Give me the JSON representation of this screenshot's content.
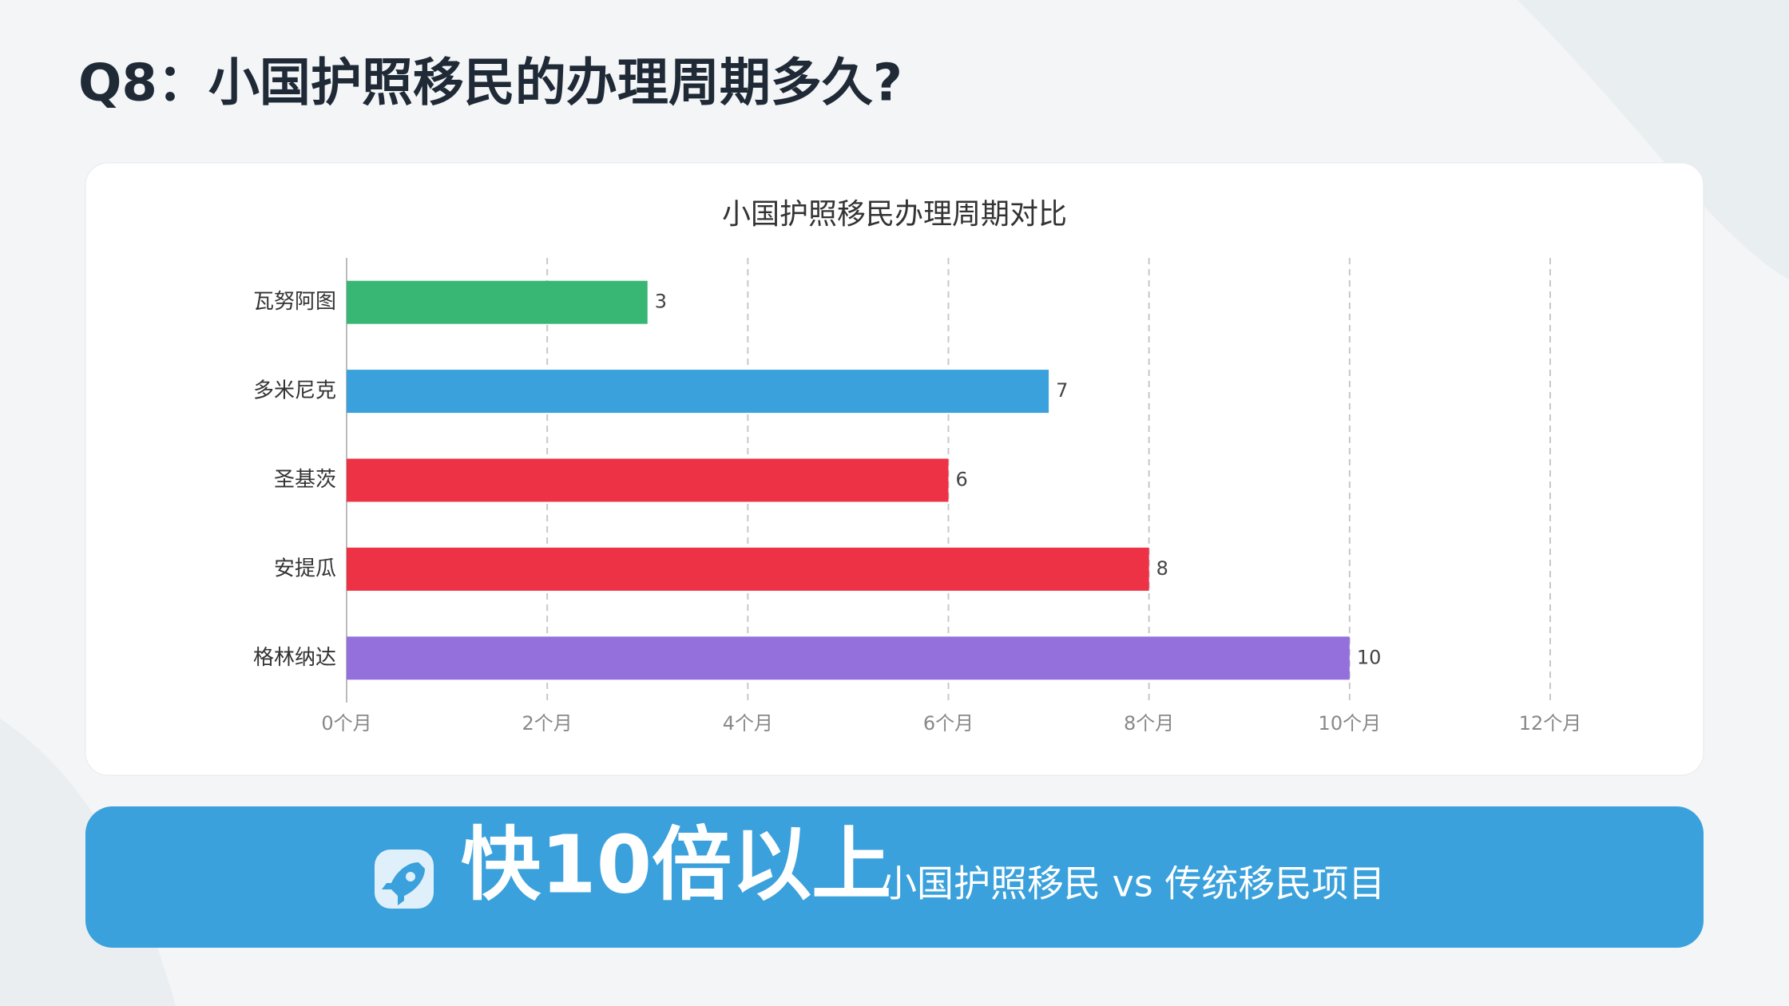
{
  "page_title": "Q8：小国护照移民的办理周期多久?",
  "chart_data": {
    "type": "hbar",
    "title": "小国护照移民办理周期对比",
    "categories": [
      "瓦努阿图",
      "多米尼克",
      "圣基茨",
      "安提瓜",
      "格林纳达"
    ],
    "values": [
      3,
      7,
      6,
      8,
      10
    ],
    "colors": [
      "#38b673",
      "#3aa1dc",
      "#ee3246",
      "#ee3246",
      "#9470dc"
    ],
    "xlim": [
      0,
      12
    ],
    "xticks": [
      {
        "value": 0,
        "label": "0个月"
      },
      {
        "value": 2,
        "label": "2个月"
      },
      {
        "value": 4,
        "label": "4个月"
      },
      {
        "value": 6,
        "label": "6个月"
      },
      {
        "value": 8,
        "label": "8个月"
      },
      {
        "value": 10,
        "label": "10个月"
      },
      {
        "value": 12,
        "label": "12个月"
      }
    ],
    "grid": true
  },
  "banner": {
    "headline": "快10倍以上",
    "subtext": "小国护照移民 vs 传统移民项目"
  }
}
